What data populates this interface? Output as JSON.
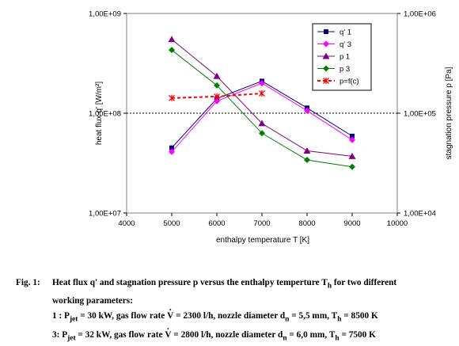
{
  "chart_data": {
    "type": "line",
    "title": "",
    "xlabel": "enthalpy temperature T [K]",
    "ylabel_left": "heat flux q' [W/m²]",
    "ylabel_right": "stagnation pressure p [Pa]",
    "x_ticks": [
      "4000",
      "5000",
      "6000",
      "7000",
      "8000",
      "9000",
      "10000"
    ],
    "y_left_ticks": [
      "1,00E+07",
      "1,00E+08",
      "1,00E+09"
    ],
    "y_right_ticks": [
      "1,00E+04",
      "1,00E+05",
      "1,00E+06"
    ],
    "xlim": [
      4000,
      10000
    ],
    "ylim_left": [
      10000000,
      1000000000
    ],
    "ylim_right": [
      10000,
      1000000
    ],
    "y_scale": "log",
    "grid": "dotted horizontal line at 1,00E+08 only",
    "legend_position": "top-right",
    "series": [
      {
        "name": "q' 1",
        "axis": "left",
        "color": "#000080",
        "marker": "square",
        "line": "solid",
        "x": [
          5000,
          6000,
          7000,
          8000,
          9000
        ],
        "y": [
          45000000,
          140000000,
          210000000,
          113000000,
          59000000
        ]
      },
      {
        "name": "q' 3",
        "axis": "left",
        "color": "#ff00ff",
        "marker": "diamond",
        "line": "solid",
        "x": [
          5000,
          6000,
          7000,
          8000,
          9000
        ],
        "y": [
          41000000,
          132000000,
          200000000,
          106000000,
          54000000
        ]
      },
      {
        "name": "p 1",
        "axis": "right",
        "color": "#800080",
        "marker": "triangle",
        "line": "solid",
        "x": [
          5000,
          6000,
          7000,
          8000,
          9000
        ],
        "y": [
          550000,
          235000,
          79000,
          42000,
          37000
        ]
      },
      {
        "name": "p 3",
        "axis": "right",
        "color": "#008000",
        "marker": "diamond",
        "line": "solid",
        "x": [
          5000,
          6000,
          7000,
          8000,
          9000
        ],
        "y": [
          430000,
          190000,
          63000,
          34000,
          29000
        ]
      },
      {
        "name": "p=f(c)",
        "axis": "right",
        "color": "#ff0000",
        "marker": "star",
        "line": "dashed",
        "x": [
          5000,
          6000,
          7000
        ],
        "y": [
          142000,
          147000,
          158000
        ]
      }
    ]
  },
  "caption": {
    "fig_label": "Fig. 1:",
    "title_line1": "Heat flux q' and stagnation pressure p versus the enthalpy temperture T",
    "title_sub": "h",
    "title_line1_end": " for two different",
    "title_line2": "working parameters:",
    "line1": {
      "lead": "1 : P",
      "p_sub": "jet",
      "a": " = 30 kW, gas flow rate ",
      "v": "V",
      "b": " = 2300 l/h, nozzle diameter d",
      "d_sub": "n",
      "c": " = 5,5 mm, T",
      "t_sub": "h",
      "d": " = 8500 K"
    },
    "line2": {
      "lead": "3: P",
      "p_sub": "jet",
      "a": " = 32 kW, gas flow rate ",
      "v": "V",
      "b": " = 2800 l/h, nozzle diameter d",
      "d_sub": "n",
      "c": " = 6,0 mm, T",
      "t_sub": "h",
      "d": " = 7500 K"
    }
  }
}
